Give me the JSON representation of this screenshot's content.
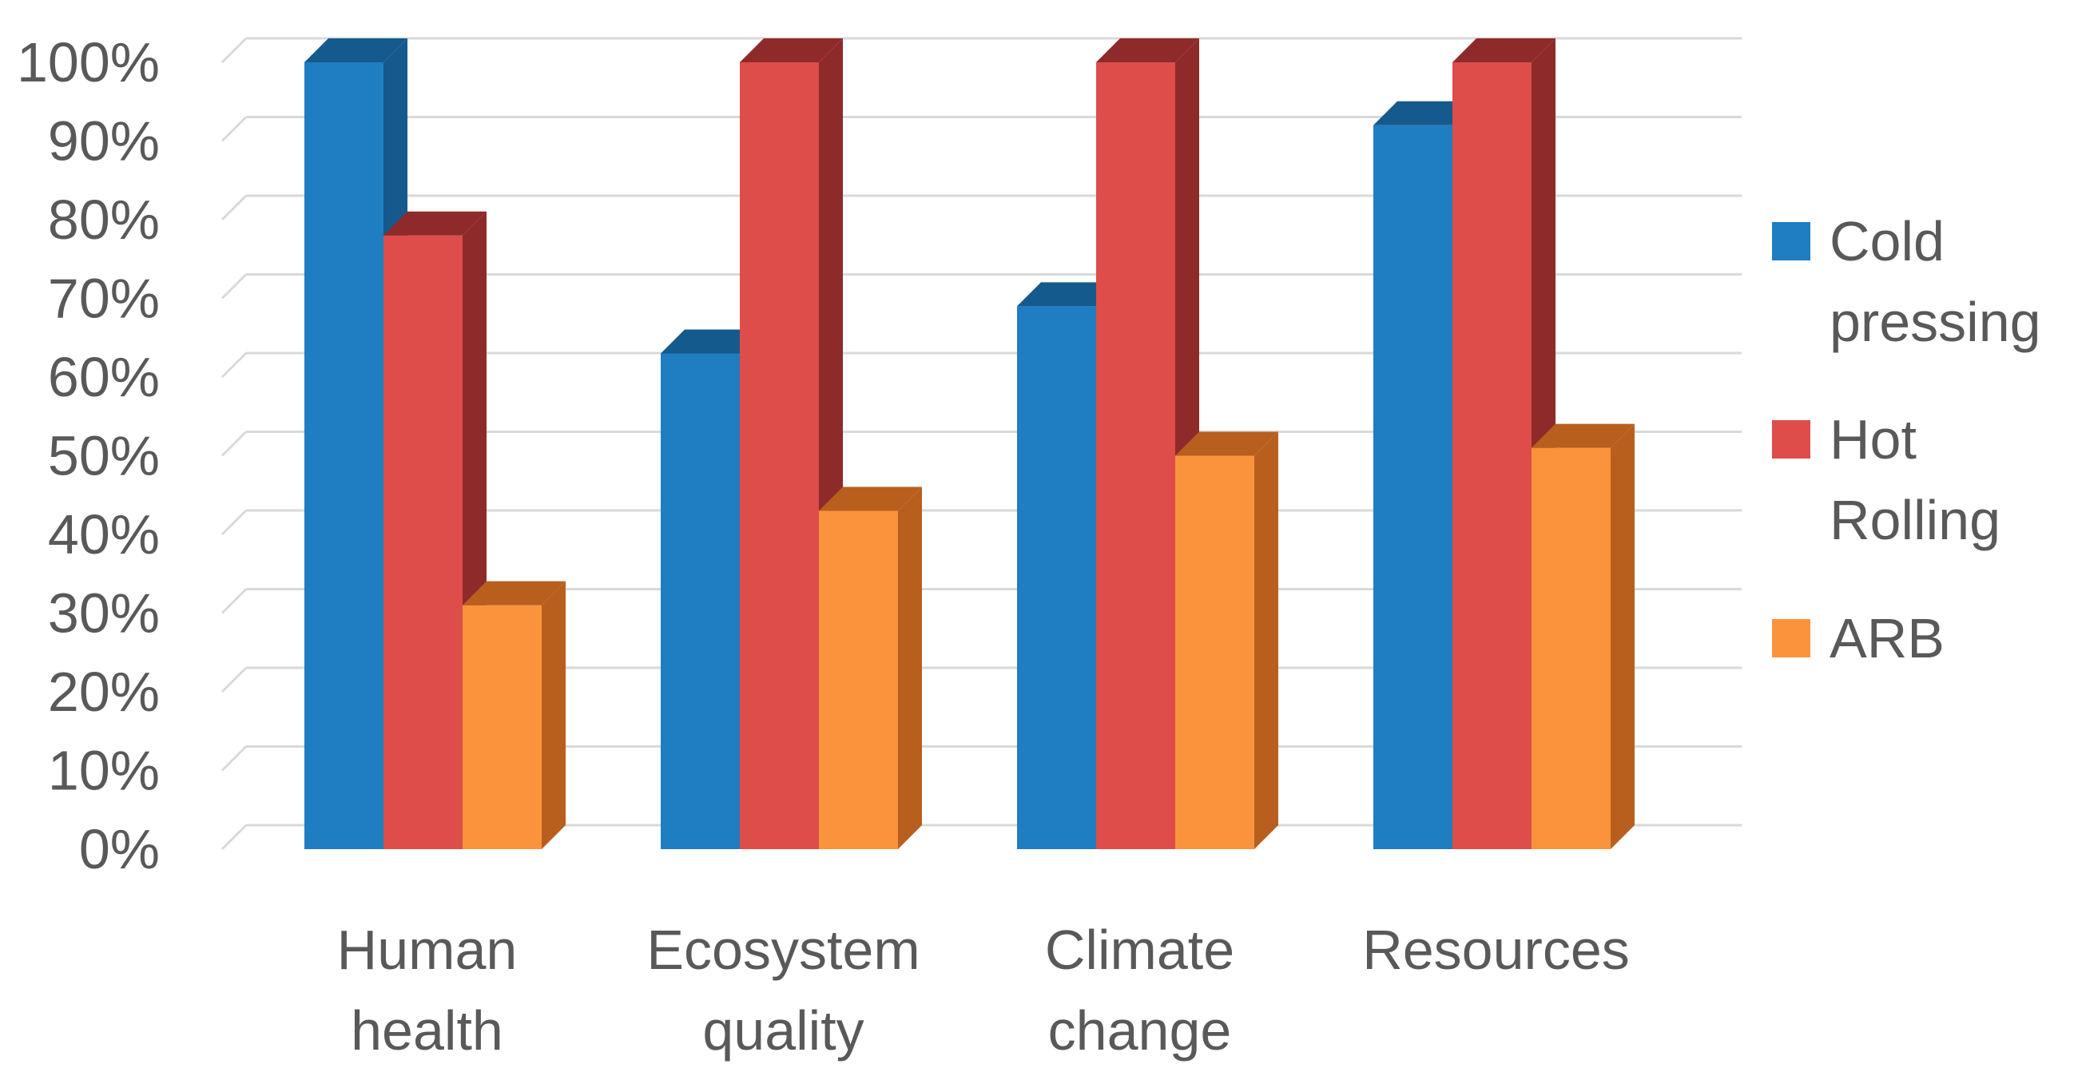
{
  "chart_data": {
    "type": "bar",
    "style": "3d-clustered-column",
    "title": "",
    "xlabel": "",
    "ylabel": "",
    "ylim": [
      0,
      100
    ],
    "y_ticks": [
      "0%",
      "10%",
      "20%",
      "30%",
      "40%",
      "50%",
      "60%",
      "70%",
      "80%",
      "90%",
      "100%"
    ],
    "categories": [
      [
        "Human",
        "health"
      ],
      [
        "Ecosystem",
        "quality"
      ],
      [
        "Climate",
        "change"
      ],
      [
        "Resources"
      ]
    ],
    "series": [
      {
        "name": [
          "Cold",
          "pressing"
        ],
        "values": [
          100,
          63,
          69,
          92
        ],
        "color": "#1f7dc2",
        "side_color": "#155a8c"
      },
      {
        "name": [
          "Hot",
          "Rolling"
        ],
        "values": [
          78,
          100,
          100,
          100
        ],
        "color": "#de4d4a",
        "side_color": "#8f2a2a"
      },
      {
        "name": [
          "ARB"
        ],
        "values": [
          31,
          43,
          50,
          51
        ],
        "color": "#fb933d",
        "side_color": "#b85f1e"
      }
    ],
    "grid": true,
    "legend_position": "right"
  }
}
